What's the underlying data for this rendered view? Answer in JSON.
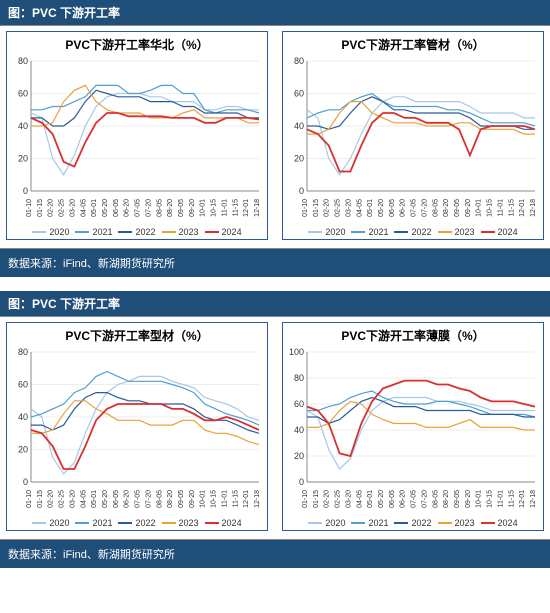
{
  "sections": [
    {
      "title": "图：PVC 下游开工率",
      "source": "数据来源：iFind、新湖期货研究所",
      "charts": [
        "huabei",
        "guancai"
      ]
    },
    {
      "title": "图：PVC 下游开工率",
      "source": "数据来源：iFind、新湖期货研究所",
      "charts": [
        "xingcai",
        "bomo"
      ]
    }
  ],
  "legend_labels": [
    "2020",
    "2021",
    "2022",
    "2023",
    "2024"
  ],
  "series_colors": {
    "2020": "#a6c8e8",
    "2021": "#4f9fcf",
    "2022": "#2a5a9a",
    "2023": "#e8a23a",
    "2024": "#d93030"
  },
  "x_labels": [
    "01-10",
    "01-15",
    "02-20",
    "02-25",
    "03-20",
    "04-05",
    "05-01",
    "05-20",
    "06-05",
    "06-20",
    "07-05",
    "07-20",
    "08-05",
    "08-20",
    "09-05",
    "09-20",
    "10-01",
    "10-15",
    "11-01",
    "11-15",
    "12-01",
    "12-18"
  ],
  "charts": {
    "huabei": {
      "title": "PVC下游开工率华北（%）",
      "type": "line",
      "ylim": [
        0,
        80
      ],
      "ytick_step": 20,
      "background_color": "#ffffff",
      "grid_color": "#dddddd",
      "title_fontsize": 12,
      "label_fontsize": 9,
      "line_width": 1.2,
      "series": {
        "2020": [
          48,
          45,
          20,
          10,
          22,
          40,
          52,
          58,
          60,
          60,
          60,
          58,
          58,
          55,
          55,
          55,
          50,
          50,
          52,
          52,
          50,
          50
        ],
        "2021": [
          50,
          50,
          52,
          52,
          55,
          58,
          65,
          65,
          65,
          60,
          60,
          62,
          65,
          65,
          60,
          60,
          50,
          48,
          50,
          50,
          50,
          48
        ],
        "2022": [
          45,
          45,
          40,
          40,
          45,
          55,
          62,
          60,
          58,
          58,
          58,
          55,
          55,
          55,
          52,
          52,
          48,
          48,
          48,
          48,
          45,
          45
        ],
        "2023": [
          40,
          40,
          42,
          55,
          62,
          65,
          55,
          50,
          48,
          48,
          48,
          45,
          45,
          45,
          48,
          50,
          45,
          45,
          45,
          45,
          42,
          42
        ],
        "2024": [
          45,
          42,
          35,
          18,
          15,
          30,
          42,
          48,
          48,
          46,
          46,
          46,
          46,
          45,
          45,
          45,
          42,
          42,
          45,
          45,
          45,
          44
        ]
      }
    },
    "guancai": {
      "title": "PVC下游开工率管材（%）",
      "type": "line",
      "ylim": [
        0,
        80
      ],
      "ytick_step": 20,
      "background_color": "#ffffff",
      "grid_color": "#dddddd",
      "title_fontsize": 12,
      "label_fontsize": 9,
      "line_width": 1.2,
      "series": {
        "2020": [
          50,
          45,
          20,
          10,
          20,
          35,
          48,
          55,
          58,
          58,
          55,
          55,
          55,
          55,
          55,
          52,
          48,
          48,
          48,
          48,
          45,
          45
        ],
        "2021": [
          45,
          48,
          50,
          50,
          55,
          58,
          60,
          55,
          52,
          52,
          52,
          52,
          52,
          50,
          50,
          48,
          45,
          42,
          42,
          42,
          42,
          40
        ],
        "2022": [
          40,
          40,
          38,
          40,
          48,
          55,
          58,
          55,
          50,
          50,
          48,
          48,
          48,
          48,
          48,
          45,
          40,
          40,
          40,
          40,
          38,
          38
        ],
        "2023": [
          35,
          35,
          38,
          48,
          55,
          55,
          48,
          45,
          42,
          42,
          42,
          40,
          40,
          40,
          42,
          42,
          38,
          38,
          38,
          38,
          35,
          35
        ],
        "2024": [
          38,
          35,
          28,
          12,
          12,
          28,
          42,
          48,
          48,
          45,
          45,
          42,
          42,
          42,
          38,
          22,
          38,
          40,
          40,
          40,
          40,
          38
        ]
      }
    },
    "xingcai": {
      "title": "PVC下游开工率型材（%）",
      "type": "line",
      "ylim": [
        0,
        80
      ],
      "ytick_step": 20,
      "background_color": "#ffffff",
      "grid_color": "#dddddd",
      "title_fontsize": 12,
      "label_fontsize": 9,
      "line_width": 1.2,
      "series": {
        "2020": [
          45,
          40,
          15,
          5,
          12,
          30,
          45,
          55,
          60,
          62,
          65,
          65,
          65,
          62,
          60,
          58,
          52,
          50,
          48,
          45,
          40,
          38
        ],
        "2021": [
          40,
          42,
          45,
          48,
          55,
          58,
          65,
          68,
          65,
          62,
          62,
          62,
          62,
          60,
          58,
          55,
          48,
          45,
          42,
          40,
          38,
          35
        ],
        "2022": [
          35,
          35,
          32,
          35,
          45,
          52,
          55,
          55,
          52,
          50,
          50,
          48,
          48,
          48,
          48,
          45,
          40,
          38,
          38,
          35,
          32,
          30
        ],
        "2023": [
          30,
          30,
          32,
          42,
          50,
          50,
          45,
          42,
          38,
          38,
          38,
          35,
          35,
          35,
          38,
          38,
          32,
          30,
          30,
          28,
          25,
          23
        ],
        "2024": [
          32,
          30,
          22,
          8,
          8,
          22,
          38,
          45,
          48,
          48,
          48,
          48,
          48,
          45,
          45,
          42,
          38,
          38,
          40,
          38,
          35,
          32
        ]
      }
    },
    "bomo": {
      "title": "PVC下游开工率薄膜（%）",
      "type": "line",
      "ylim": [
        0,
        100
      ],
      "ytick_step": 20,
      "background_color": "#ffffff",
      "grid_color": "#dddddd",
      "title_fontsize": 12,
      "label_fontsize": 9,
      "line_width": 1.2,
      "series": {
        "2020": [
          55,
          50,
          25,
          10,
          18,
          40,
          55,
          62,
          65,
          65,
          65,
          65,
          62,
          62,
          62,
          60,
          58,
          55,
          55,
          55,
          55,
          55
        ],
        "2021": [
          55,
          55,
          58,
          60,
          65,
          68,
          70,
          65,
          62,
          60,
          60,
          60,
          62,
          62,
          60,
          58,
          55,
          52,
          52,
          52,
          52,
          50
        ],
        "2022": [
          50,
          50,
          45,
          48,
          55,
          62,
          65,
          62,
          58,
          58,
          58,
          55,
          55,
          55,
          55,
          55,
          52,
          52,
          52,
          52,
          50,
          50
        ],
        "2023": [
          42,
          42,
          45,
          55,
          62,
          60,
          52,
          48,
          45,
          45,
          45,
          42,
          42,
          42,
          45,
          48,
          42,
          42,
          42,
          42,
          40,
          40
        ],
        "2024": [
          58,
          55,
          45,
          22,
          20,
          45,
          62,
          72,
          75,
          78,
          78,
          78,
          75,
          75,
          72,
          70,
          65,
          62,
          62,
          62,
          60,
          58
        ]
      }
    }
  }
}
